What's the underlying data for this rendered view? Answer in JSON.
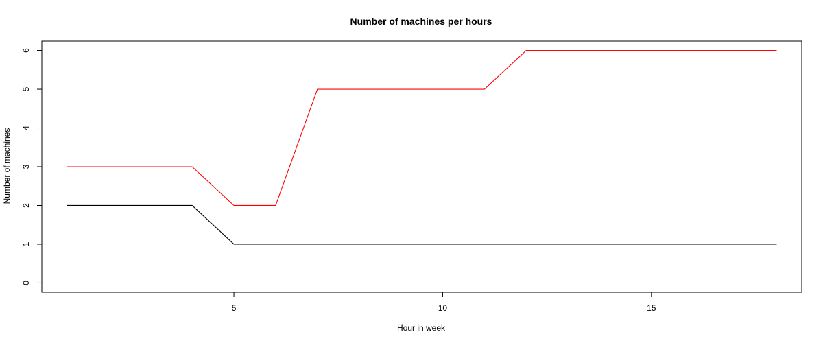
{
  "chart_data": {
    "type": "line",
    "title": "Number of machines per hours",
    "xlabel": "Hour in week",
    "ylabel": "Number of machines",
    "xlim": [
      0.4,
      18.6
    ],
    "ylim": [
      -0.24,
      6.24
    ],
    "x_ticks": [
      5,
      10,
      15
    ],
    "y_ticks": [
      0,
      1,
      2,
      3,
      4,
      5,
      6
    ],
    "grid": false,
    "series": [
      {
        "name": "black-series",
        "color": "#000000",
        "x": [
          1,
          2,
          3,
          4,
          5,
          6,
          7,
          8,
          9,
          10,
          11,
          12,
          13,
          14,
          15,
          16,
          17,
          18
        ],
        "y": [
          2,
          2,
          2,
          2,
          1,
          1,
          1,
          1,
          1,
          1,
          1,
          1,
          1,
          1,
          1,
          1,
          1,
          1
        ]
      },
      {
        "name": "red-series",
        "color": "#ff0000",
        "x": [
          1,
          2,
          3,
          4,
          5,
          6,
          7,
          8,
          9,
          10,
          11,
          12,
          13,
          14,
          15,
          16,
          17,
          18
        ],
        "y": [
          3,
          3,
          3,
          3,
          2,
          2,
          5,
          5,
          5,
          5,
          5,
          6,
          6,
          6,
          6,
          6,
          6,
          6
        ]
      }
    ]
  }
}
